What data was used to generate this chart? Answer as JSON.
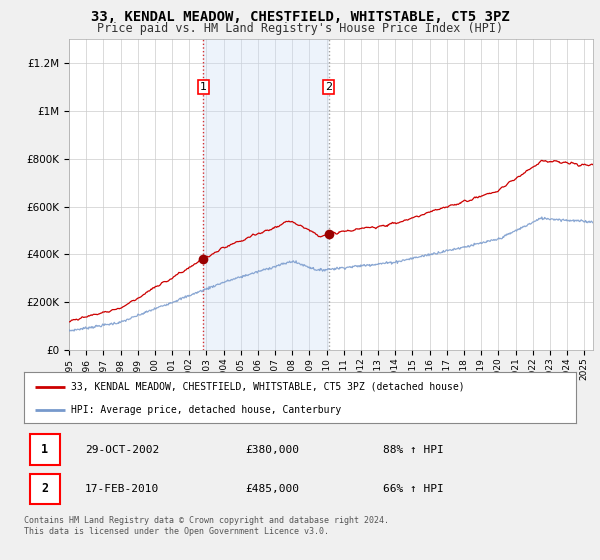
{
  "title": "33, KENDAL MEADOW, CHESTFIELD, WHITSTABLE, CT5 3PZ",
  "subtitle": "Price paid vs. HM Land Registry's House Price Index (HPI)",
  "title_fontsize": 10,
  "subtitle_fontsize": 8.5,
  "ylabel_ticks": [
    "£0",
    "£200K",
    "£400K",
    "£600K",
    "£800K",
    "£1M",
    "£1.2M"
  ],
  "ytick_values": [
    0,
    200000,
    400000,
    600000,
    800000,
    1000000,
    1200000
  ],
  "ylim": [
    0,
    1300000
  ],
  "xlim_start": 1995.0,
  "xlim_end": 2025.5,
  "sale1_x": 2002.83,
  "sale1_y": 380000,
  "sale1_label": "1",
  "sale1_date": "29-OCT-2002",
  "sale1_price": "£380,000",
  "sale1_hpi": "88% ↑ HPI",
  "sale2_x": 2010.12,
  "sale2_y": 485000,
  "sale2_label": "2",
  "sale2_date": "17-FEB-2010",
  "sale2_price": "£485,000",
  "sale2_hpi": "66% ↑ HPI",
  "line1_color": "#cc0000",
  "line2_color": "#7799cc",
  "shade_color": "#ccddf5",
  "marker_color": "#990000",
  "legend1_label": "33, KENDAL MEADOW, CHESTFIELD, WHITSTABLE, CT5 3PZ (detached house)",
  "legend2_label": "HPI: Average price, detached house, Canterbury",
  "footer": "Contains HM Land Registry data © Crown copyright and database right 2024.\nThis data is licensed under the Open Government Licence v3.0.",
  "background_color": "#f0f0f0",
  "plot_bg_color": "#ffffff",
  "grid_color": "#cccccc"
}
